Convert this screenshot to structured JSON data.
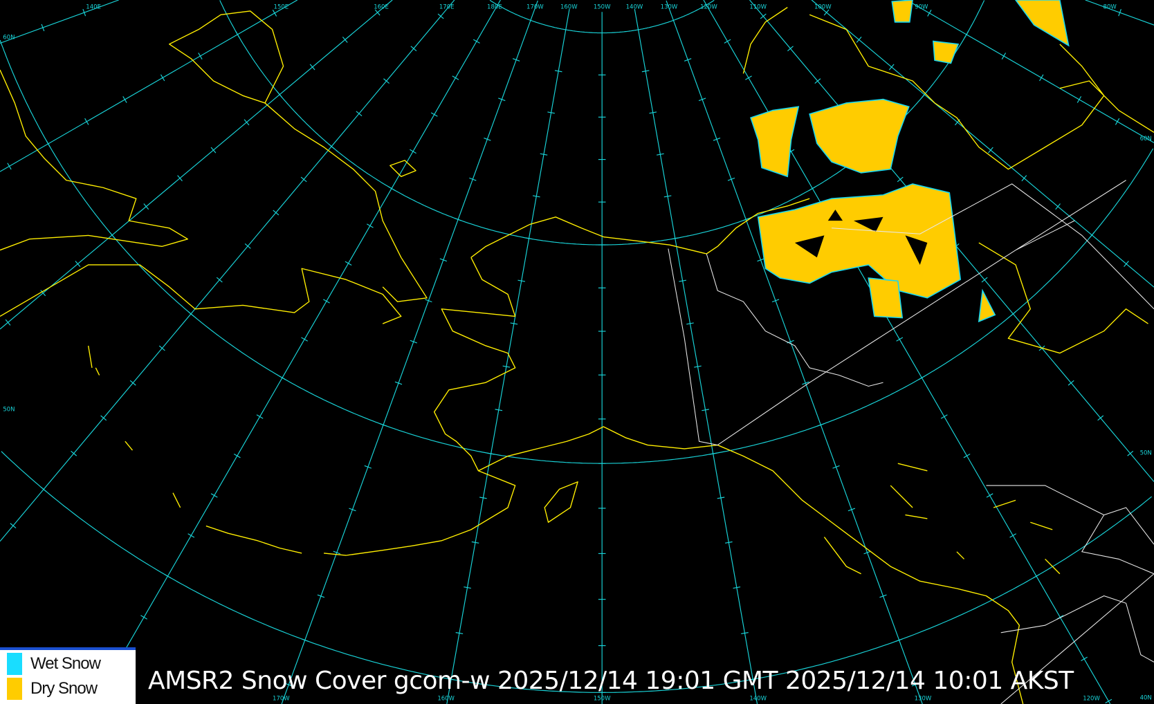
{
  "map": {
    "projection": "polar stereographic",
    "central_meridian": "150W",
    "background_color": "#000000",
    "graticule_color": "#19d3d8",
    "coastline_color": "#ffee00",
    "border_color": "#e8e8e8",
    "top_longitude_labels": [
      "140E",
      "150E",
      "160E",
      "170E",
      "180E",
      "170W",
      "160W",
      "150W",
      "140W",
      "130W",
      "120W",
      "110W",
      "100W",
      "90W",
      "80W"
    ],
    "bottom_longitude_labels": [
      "170W",
      "160W",
      "150W",
      "140W",
      "130W",
      "120W"
    ],
    "latitude_labels_left": [
      "60N",
      "50N"
    ],
    "latitude_labels_right": [
      "60N",
      "50N",
      "40N"
    ]
  },
  "legend": {
    "items": [
      {
        "label": "Wet Snow",
        "color": "#19ddff"
      },
      {
        "label": "Dry Snow",
        "color": "#ffcc00"
      }
    ]
  },
  "title": "AMSR2 Snow Cover gcom-w 2025/12/14 19:01 GMT 2025/12/14 10:01 AKST"
}
